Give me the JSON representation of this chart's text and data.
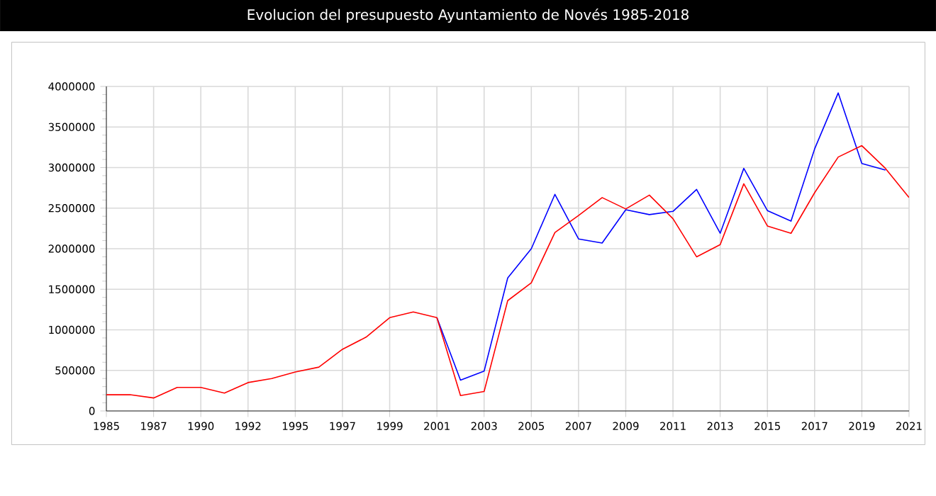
{
  "chart_data": {
    "type": "line",
    "title": "Evolucion del presupuesto Ayuntamiento de Novés 1985-2018",
    "categories": [
      "1985",
      null,
      "1987",
      null,
      "1990",
      null,
      "1992",
      null,
      "1995",
      null,
      "1997",
      null,
      "1999",
      null,
      "2001",
      null,
      "2003",
      null,
      "2005",
      null,
      "2007",
      null,
      "2009",
      null,
      "2011",
      null,
      "2013",
      null,
      "2015",
      null,
      "2017",
      null,
      "2019",
      null,
      "2021"
    ],
    "series": [
      {
        "color": "#0000ff",
        "values": [
          null,
          null,
          null,
          null,
          null,
          null,
          null,
          null,
          null,
          null,
          null,
          null,
          null,
          null,
          1150000,
          380000,
          490000,
          1640000,
          2000000,
          2670000,
          2120000,
          2070000,
          2480000,
          2420000,
          2460000,
          2730000,
          2190000,
          2990000,
          2470000,
          2340000,
          3230000,
          3920000,
          3050000,
          2970000,
          null
        ]
      },
      {
        "color": "#ff0000",
        "values": [
          200000,
          200000,
          160000,
          290000,
          290000,
          220000,
          350000,
          400000,
          480000,
          540000,
          760000,
          910000,
          1150000,
          1220000,
          1150000,
          190000,
          240000,
          1360000,
          1580000,
          2200000,
          2410000,
          2630000,
          2490000,
          2660000,
          2370000,
          1900000,
          2050000,
          2800000,
          2280000,
          2190000,
          2690000,
          3130000,
          3270000,
          2990000,
          2630000
        ]
      }
    ],
    "ylim": [
      0,
      4000000
    ],
    "yticks": [
      0,
      500000,
      1000000,
      1500000,
      2000000,
      2500000,
      3000000,
      3500000,
      4000000
    ],
    "grid": true,
    "marker": "none",
    "line_style": "solid"
  }
}
